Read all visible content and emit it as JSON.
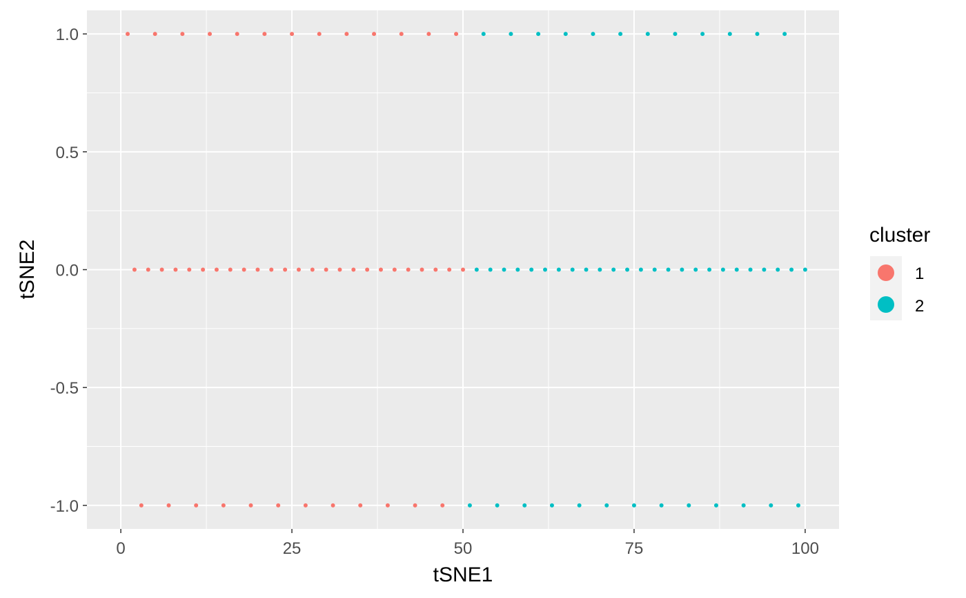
{
  "chart_data": {
    "type": "scatter",
    "xlabel": "tSNE1",
    "ylabel": "tSNE2",
    "xlim": [
      -4.95,
      104.95
    ],
    "ylim": [
      -1.1,
      1.1
    ],
    "x_ticks": [
      0,
      25,
      50,
      75,
      100
    ],
    "x_tick_labels": [
      "0",
      "25",
      "50",
      "75",
      "100"
    ],
    "y_ticks": [
      -1.0,
      -0.5,
      0.0,
      0.5,
      1.0
    ],
    "y_tick_labels": [
      "-1.0",
      "-0.5",
      "0.0",
      "0.5",
      "1.0"
    ],
    "grid": true,
    "background": "#ebebeb",
    "legend": {
      "title": "cluster",
      "position": "right",
      "entries": [
        {
          "label": "1",
          "color": "#F8766D"
        },
        {
          "label": "2",
          "color": "#00BFC4"
        }
      ]
    },
    "series": [
      {
        "name": "1",
        "color": "#F8766D",
        "points": [
          [
            1,
            1
          ],
          [
            5,
            1
          ],
          [
            9,
            1
          ],
          [
            13,
            1
          ],
          [
            17,
            1
          ],
          [
            21,
            1
          ],
          [
            25,
            1
          ],
          [
            29,
            1
          ],
          [
            33,
            1
          ],
          [
            37,
            1
          ],
          [
            41,
            1
          ],
          [
            45,
            1
          ],
          [
            49,
            1
          ],
          [
            2,
            0
          ],
          [
            4,
            0
          ],
          [
            6,
            0
          ],
          [
            8,
            0
          ],
          [
            10,
            0
          ],
          [
            12,
            0
          ],
          [
            14,
            0
          ],
          [
            16,
            0
          ],
          [
            18,
            0
          ],
          [
            20,
            0
          ],
          [
            22,
            0
          ],
          [
            24,
            0
          ],
          [
            26,
            0
          ],
          [
            28,
            0
          ],
          [
            30,
            0
          ],
          [
            32,
            0
          ],
          [
            34,
            0
          ],
          [
            36,
            0
          ],
          [
            38,
            0
          ],
          [
            40,
            0
          ],
          [
            42,
            0
          ],
          [
            44,
            0
          ],
          [
            46,
            0
          ],
          [
            48,
            0
          ],
          [
            50,
            0
          ],
          [
            3,
            -1
          ],
          [
            7,
            -1
          ],
          [
            11,
            -1
          ],
          [
            15,
            -1
          ],
          [
            19,
            -1
          ],
          [
            23,
            -1
          ],
          [
            27,
            -1
          ],
          [
            31,
            -1
          ],
          [
            35,
            -1
          ],
          [
            39,
            -1
          ],
          [
            43,
            -1
          ],
          [
            47,
            -1
          ]
        ]
      },
      {
        "name": "2",
        "color": "#00BFC4",
        "points": [
          [
            53,
            1
          ],
          [
            57,
            1
          ],
          [
            61,
            1
          ],
          [
            65,
            1
          ],
          [
            69,
            1
          ],
          [
            73,
            1
          ],
          [
            77,
            1
          ],
          [
            81,
            1
          ],
          [
            85,
            1
          ],
          [
            89,
            1
          ],
          [
            93,
            1
          ],
          [
            97,
            1
          ],
          [
            52,
            0
          ],
          [
            54,
            0
          ],
          [
            56,
            0
          ],
          [
            58,
            0
          ],
          [
            60,
            0
          ],
          [
            62,
            0
          ],
          [
            64,
            0
          ],
          [
            66,
            0
          ],
          [
            68,
            0
          ],
          [
            70,
            0
          ],
          [
            72,
            0
          ],
          [
            74,
            0
          ],
          [
            76,
            0
          ],
          [
            78,
            0
          ],
          [
            80,
            0
          ],
          [
            82,
            0
          ],
          [
            84,
            0
          ],
          [
            86,
            0
          ],
          [
            88,
            0
          ],
          [
            90,
            0
          ],
          [
            92,
            0
          ],
          [
            94,
            0
          ],
          [
            96,
            0
          ],
          [
            98,
            0
          ],
          [
            100,
            0
          ],
          [
            51,
            -1
          ],
          [
            55,
            -1
          ],
          [
            59,
            -1
          ],
          [
            63,
            -1
          ],
          [
            67,
            -1
          ],
          [
            71,
            -1
          ],
          [
            75,
            -1
          ],
          [
            79,
            -1
          ],
          [
            83,
            -1
          ],
          [
            87,
            -1
          ],
          [
            91,
            -1
          ],
          [
            95,
            -1
          ],
          [
            99,
            -1
          ]
        ]
      }
    ]
  }
}
